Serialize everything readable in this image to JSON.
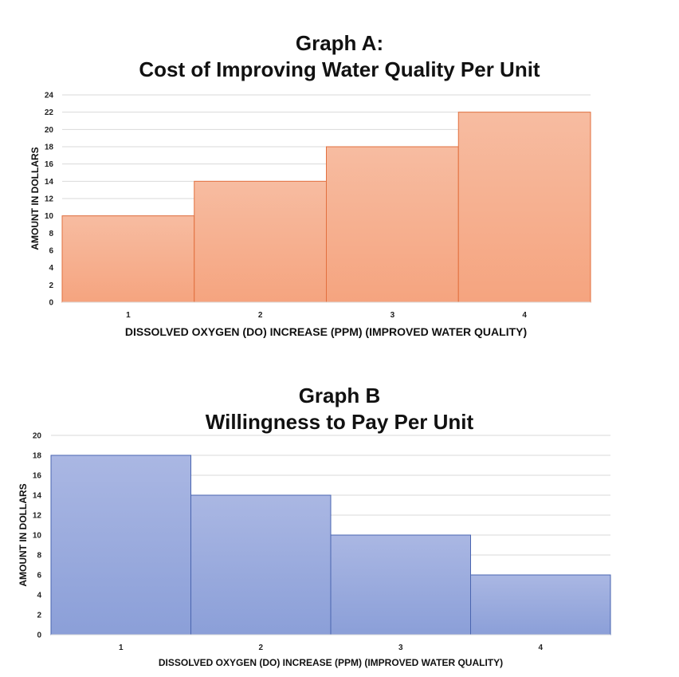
{
  "chart_data": [
    {
      "type": "bar",
      "title": "Graph A:",
      "subtitle": "Cost of Improving Water Quality Per Unit",
      "xlabel": "DISSOLVED OXYGEN (DO) INCREASE (PPM) (IMPROVED WATER QUALITY)",
      "ylabel": "AMOUNT IN DOLLARS",
      "categories": [
        "1",
        "2",
        "3",
        "4"
      ],
      "values": [
        10,
        14,
        18,
        22
      ],
      "ylim": [
        0,
        24
      ],
      "yticks": [
        0,
        2,
        4,
        6,
        8,
        10,
        12,
        14,
        16,
        18,
        20,
        22,
        24
      ],
      "grid": true,
      "legend": "none",
      "bar_color": "#f5a47f",
      "bar_color_light": "#f7bca1",
      "bar_edge": "#e2703f"
    },
    {
      "type": "bar",
      "title": "Graph B",
      "subtitle": "Willingness to Pay Per Unit",
      "xlabel": "DISSOLVED OXYGEN (DO) INCREASE (PPM) (IMPROVED WATER QUALITY)",
      "ylabel": "AMOUNT IN DOLLARS",
      "categories": [
        "1",
        "2",
        "3",
        "4"
      ],
      "values": [
        18,
        14,
        10,
        6
      ],
      "ylim": [
        0,
        20
      ],
      "yticks": [
        0,
        2,
        4,
        6,
        8,
        10,
        12,
        14,
        16,
        18,
        20
      ],
      "grid": true,
      "legend": "none",
      "bar_color": "#8b9fd8",
      "bar_color_light": "#aab7e3",
      "bar_edge": "#4a65b0"
    }
  ]
}
